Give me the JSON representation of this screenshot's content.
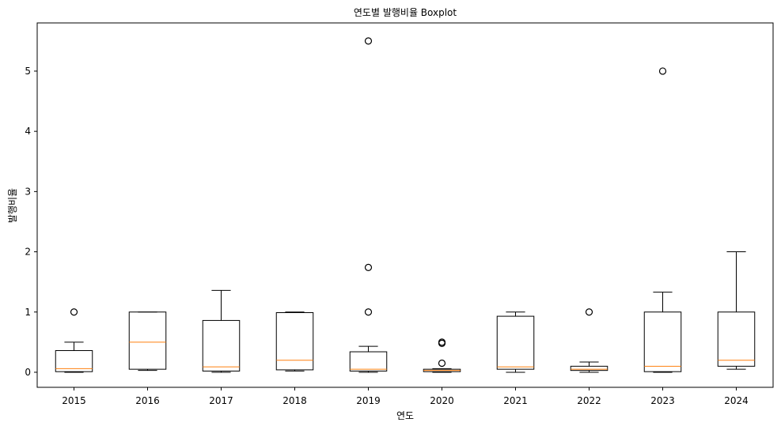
{
  "chart_data": {
    "type": "boxplot",
    "title": "연도별 발행비율 Boxplot",
    "xlabel": "연도",
    "ylabel": "발행비율",
    "ylim": [
      -0.25,
      5.8
    ],
    "yticks": [
      0,
      1,
      2,
      3,
      4,
      5
    ],
    "grid": false,
    "colors": {
      "box": "#000000",
      "median": "#ff7f0e",
      "background": "#ffffff"
    },
    "categories": [
      "2015",
      "2016",
      "2017",
      "2018",
      "2019",
      "2020",
      "2021",
      "2022",
      "2023",
      "2024"
    ],
    "boxes": [
      {
        "category": "2015",
        "whisker_low": 0.0,
        "q1": 0.01,
        "median": 0.06,
        "q3": 0.36,
        "whisker_high": 0.5,
        "outliers": [
          1.0
        ]
      },
      {
        "category": "2016",
        "whisker_low": 0.03,
        "q1": 0.05,
        "median": 0.5,
        "q3": 1.0,
        "whisker_high": 1.0,
        "outliers": []
      },
      {
        "category": "2017",
        "whisker_low": 0.0,
        "q1": 0.02,
        "median": 0.09,
        "q3": 0.86,
        "whisker_high": 1.36,
        "outliers": []
      },
      {
        "category": "2018",
        "whisker_low": 0.02,
        "q1": 0.04,
        "median": 0.2,
        "q3": 0.99,
        "whisker_high": 1.0,
        "outliers": []
      },
      {
        "category": "2019",
        "whisker_low": 0.0,
        "q1": 0.02,
        "median": 0.05,
        "q3": 0.34,
        "whisker_high": 0.43,
        "outliers": [
          1.0,
          1.74,
          5.5
        ]
      },
      {
        "category": "2020",
        "whisker_low": 0.0,
        "q1": 0.01,
        "median": 0.03,
        "q3": 0.05,
        "whisker_high": 0.06,
        "outliers": [
          0.15,
          0.48,
          0.5
        ]
      },
      {
        "category": "2021",
        "whisker_low": 0.0,
        "q1": 0.05,
        "median": 0.09,
        "q3": 0.93,
        "whisker_high": 1.0,
        "outliers": []
      },
      {
        "category": "2022",
        "whisker_low": 0.0,
        "q1": 0.03,
        "median": 0.05,
        "q3": 0.1,
        "whisker_high": 0.17,
        "outliers": [
          1.0
        ]
      },
      {
        "category": "2023",
        "whisker_low": 0.0,
        "q1": 0.01,
        "median": 0.1,
        "q3": 1.0,
        "whisker_high": 1.33,
        "outliers": [
          5.0
        ]
      },
      {
        "category": "2024",
        "whisker_low": 0.05,
        "q1": 0.1,
        "median": 0.2,
        "q3": 1.0,
        "whisker_high": 2.0,
        "outliers": []
      }
    ]
  }
}
